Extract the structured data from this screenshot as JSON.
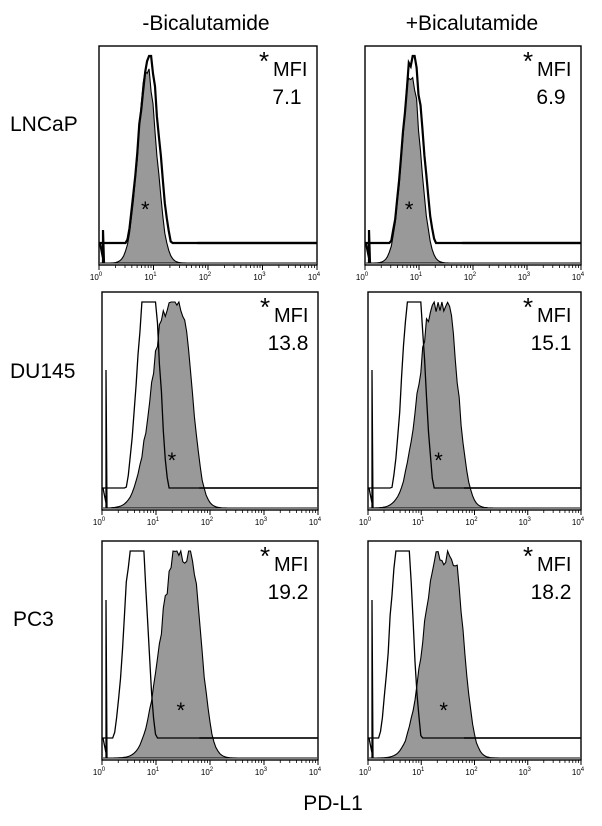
{
  "figure": {
    "x_axis_label": "PD-L1",
    "column_titles": [
      "-Bicalutamide",
      "+Bicalutamide"
    ],
    "row_labels": [
      "LNCaP",
      "DU145",
      "PC3"
    ],
    "mfi_label": "MFI",
    "mfi_marker": "*",
    "peak_marker": "*",
    "fill_color": "#999999",
    "line_color": "#000000"
  },
  "chart_data": [
    {
      "type": "area",
      "row": "LNCaP",
      "column": "-Bicalutamide",
      "x_scale": "log",
      "xlim": [
        1,
        10000
      ],
      "x_ticks": [
        "10^0",
        "10^1",
        "10^2",
        "10^3",
        "10^4"
      ],
      "mfi": "7.1",
      "series": [
        {
          "style": "outline",
          "peak_x": 8
        },
        {
          "style": "filled",
          "peak_x": 7.5
        }
      ]
    },
    {
      "type": "area",
      "row": "LNCaP",
      "column": "+Bicalutamide",
      "x_scale": "log",
      "xlim": [
        1,
        10000
      ],
      "x_ticks": [
        "10^0",
        "10^1",
        "10^2",
        "10^3",
        "10^4"
      ],
      "mfi": "6.9",
      "series": [
        {
          "style": "outline",
          "peak_x": 7.5
        },
        {
          "style": "filled",
          "peak_x": 7
        }
      ]
    },
    {
      "type": "area",
      "row": "DU145",
      "column": "-Bicalutamide",
      "x_scale": "log",
      "xlim": [
        1,
        10000
      ],
      "x_ticks": [
        "10^0",
        "10^1",
        "10^2",
        "10^3",
        "10^4"
      ],
      "mfi": "13.8",
      "series": [
        {
          "style": "outline",
          "peak_x": 6
        },
        {
          "style": "filled",
          "peak_x": 15
        }
      ]
    },
    {
      "type": "area",
      "row": "DU145",
      "column": "+Bicalutamide",
      "x_scale": "log",
      "xlim": [
        1,
        10000
      ],
      "x_ticks": [
        "10^0",
        "10^1",
        "10^2",
        "10^3",
        "10^4"
      ],
      "mfi": "15.1",
      "series": [
        {
          "style": "outline",
          "peak_x": 6
        },
        {
          "style": "filled",
          "peak_x": 16
        }
      ]
    },
    {
      "type": "area",
      "row": "PC3",
      "column": "-Bicalutamide",
      "x_scale": "log",
      "xlim": [
        1,
        10000
      ],
      "x_ticks": [
        "10^0",
        "10^1",
        "10^2",
        "10^3",
        "10^4"
      ],
      "mfi": "19.2",
      "series": [
        {
          "style": "outline",
          "peak_x": 3.5
        },
        {
          "style": "filled",
          "peak_x": 22
        }
      ]
    },
    {
      "type": "area",
      "row": "PC3",
      "column": "+Bicalutamide",
      "x_scale": "log",
      "xlim": [
        1,
        10000
      ],
      "x_ticks": [
        "10^0",
        "10^1",
        "10^2",
        "10^3",
        "10^4"
      ],
      "mfi": "18.2",
      "series": [
        {
          "style": "outline",
          "peak_x": 3.5
        },
        {
          "style": "filled",
          "peak_x": 20
        }
      ]
    }
  ]
}
